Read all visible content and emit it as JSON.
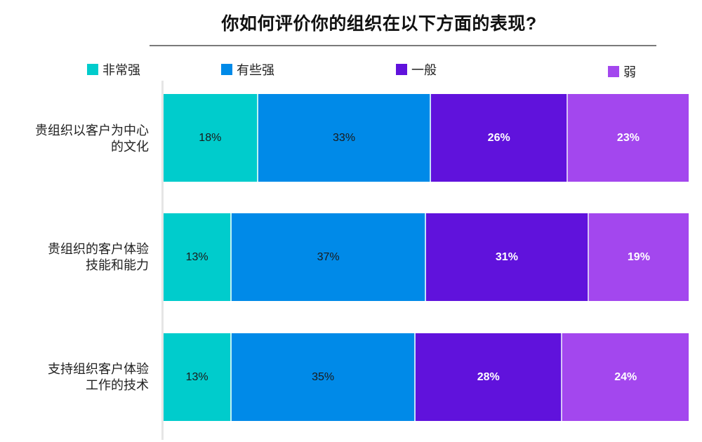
{
  "chart_data": {
    "type": "bar",
    "orientation": "horizontal",
    "stacked": true,
    "title": "你如何评价你的组织在以下方面的表现?",
    "xlabel": "",
    "ylabel": "",
    "xlim": [
      0,
      100
    ],
    "grid": false,
    "legend_position": "top",
    "categories": [
      "贵组织以客户为中心的文化",
      "贵组织的客户体验技能和能力",
      "支持组织客户体验工作的技术"
    ],
    "category_label_lines": [
      [
        "贵组织以客户为中心",
        "的文化"
      ],
      [
        "贵组织的客户体验",
        "技能和能力"
      ],
      [
        "支持组织客户体验",
        "工作的技术"
      ]
    ],
    "series": [
      {
        "name": "非常强",
        "color": "#00CCCC",
        "values": [
          18,
          13,
          13
        ],
        "labels": [
          "18%",
          "13%",
          "13%"
        ]
      },
      {
        "name": "有些强",
        "color": "#008AE8",
        "values": [
          33,
          37,
          35
        ],
        "labels": [
          "33%",
          "37%",
          "35%"
        ]
      },
      {
        "name": "一般",
        "color": "#6012DC",
        "values": [
          26,
          31,
          28
        ],
        "labels": [
          "26%",
          "31%",
          "28%"
        ]
      },
      {
        "name": "弱",
        "color": "#A347EE",
        "values": [
          23,
          19,
          24
        ],
        "labels": [
          "23%",
          "19%",
          "24%"
        ]
      }
    ]
  },
  "legend": [
    {
      "label": "非常强",
      "color": "#00CCCC"
    },
    {
      "label": "有些强",
      "color": "#008AE8"
    },
    {
      "label": "一般",
      "color": "#6012DC"
    },
    {
      "label": "弱",
      "color": "#A347EE"
    }
  ]
}
